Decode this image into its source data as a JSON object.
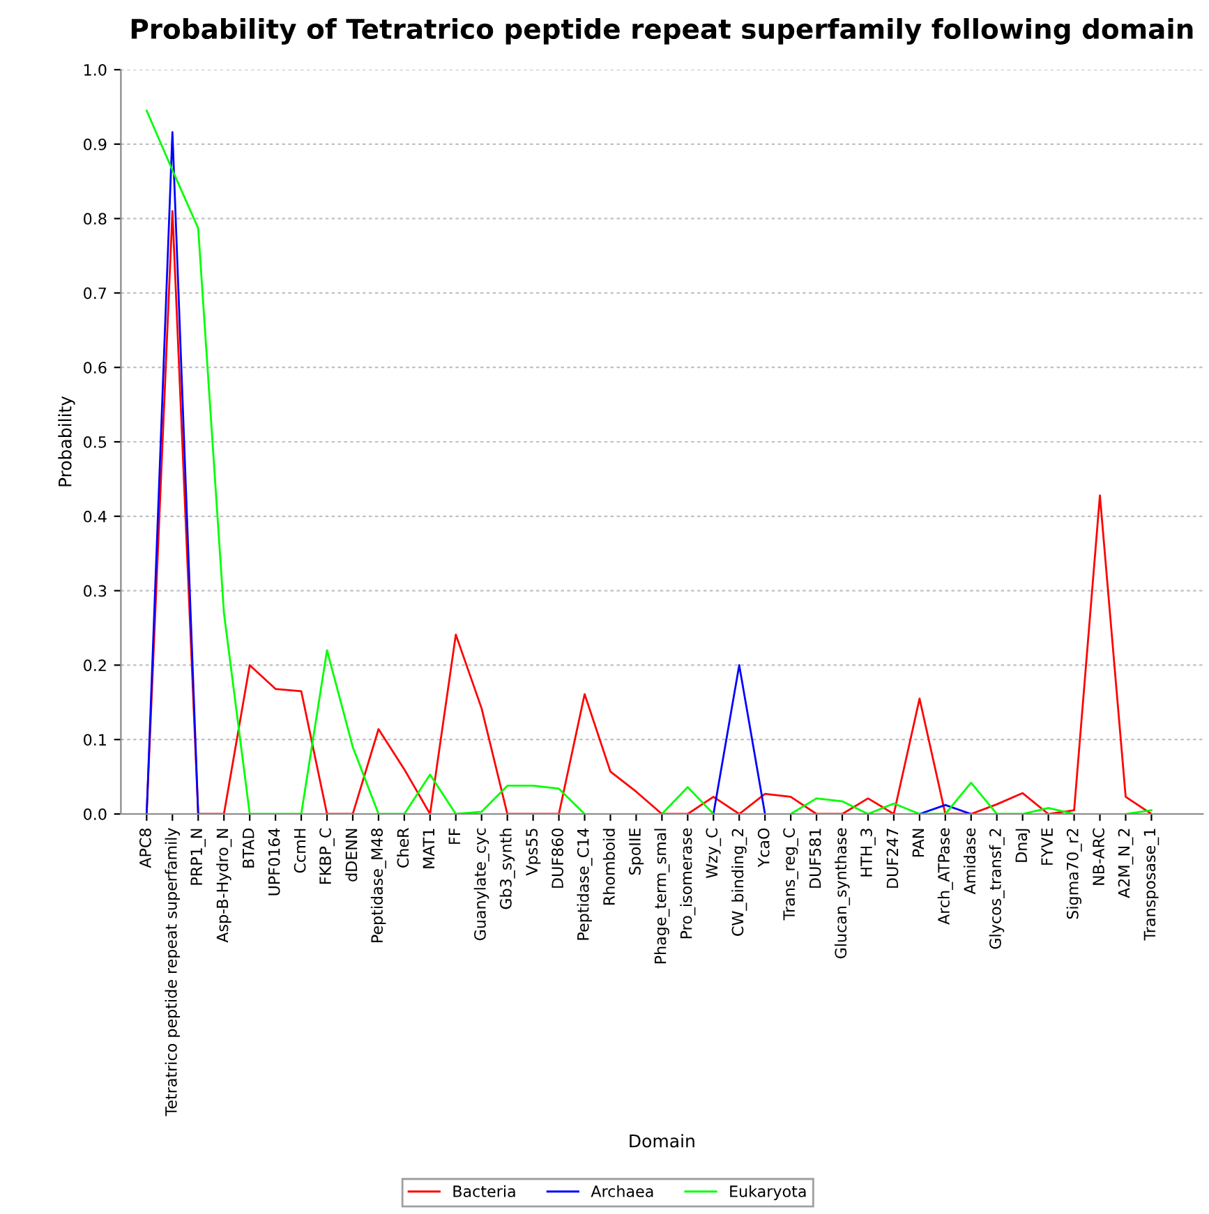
{
  "chart_data": {
    "type": "line",
    "title": "Probability of Tetratrico peptide repeat superfamily following domain",
    "xlabel": "Domain",
    "ylabel": "Probability",
    "categories": [
      "APC8",
      "Tetratrico peptide repeat superfamily",
      "PRP1_N",
      "Asp-B-Hydro_N",
      "BTAD",
      "UPF0164",
      "CcmH",
      "FKBP_C",
      "dDENN",
      "Peptidase_M48",
      "CheR",
      "MAT1",
      "FF",
      "Guanylate_cyc",
      "Gb3_synth",
      "Vps55",
      "DUF860",
      "Peptidase_C14",
      "Rhomboid",
      "SpoIIE",
      "Phage_term_smal",
      "Pro_isomerase",
      "Wzy_C",
      "CW_binding_2",
      "YcaO",
      "Trans_reg_C",
      "DUF581",
      "Glucan_synthase",
      "HTH_3",
      "DUF247",
      "PAN",
      "Arch_ATPase",
      "Amidase",
      "Glycos_transf_2",
      "DnaJ",
      "FYVE",
      "Sigma70_r2",
      "NB-ARC",
      "A2M_N_2",
      "Transposase_1"
    ],
    "series": [
      {
        "name": "Bacteria",
        "color": "#ff0000",
        "values": [
          0,
          0.81,
          0,
          0,
          0.2,
          0.168,
          0.165,
          0,
          0,
          0.114,
          0.06,
          0,
          0.241,
          0.142,
          0,
          0,
          0,
          0.161,
          0.057,
          0.03,
          0,
          0,
          0.023,
          0,
          0.027,
          0.023,
          0,
          0,
          0.021,
          0,
          0.155,
          0,
          0,
          0.013,
          0.028,
          0,
          0.005,
          0.428,
          0.023,
          0
        ]
      },
      {
        "name": "Archaea",
        "color": "#0000ff",
        "values": [
          0,
          0.916,
          0,
          null,
          null,
          null,
          null,
          null,
          null,
          null,
          null,
          null,
          null,
          null,
          null,
          null,
          null,
          null,
          null,
          null,
          null,
          null,
          0,
          0.2,
          0,
          null,
          null,
          null,
          null,
          null,
          0,
          0.012,
          0,
          null,
          null,
          null,
          null,
          null,
          null,
          null
        ]
      },
      {
        "name": "Eukaryota",
        "color": "#00ff00",
        "values": [
          0.945,
          0.865,
          0.787,
          0.27,
          0,
          0,
          0,
          0.22,
          0.09,
          0,
          0,
          0.053,
          0,
          0.003,
          0.038,
          0.038,
          0.034,
          0,
          null,
          null,
          0,
          0.036,
          0,
          null,
          null,
          0,
          0.021,
          0.017,
          0,
          0.014,
          0,
          0,
          0.042,
          0,
          0,
          0.008,
          0,
          null,
          0,
          0.005
        ]
      }
    ],
    "ylim": [
      0,
      1.0
    ],
    "yticks": [
      {
        "value": 0,
        "label": "0.0"
      },
      0.1,
      0.2,
      0.3,
      0.4,
      0.5,
      0.6,
      0.7,
      0.8,
      0.9,
      {
        "value": 1,
        "label": "1.0"
      }
    ],
    "grid": "y",
    "legend": "bottom"
  }
}
